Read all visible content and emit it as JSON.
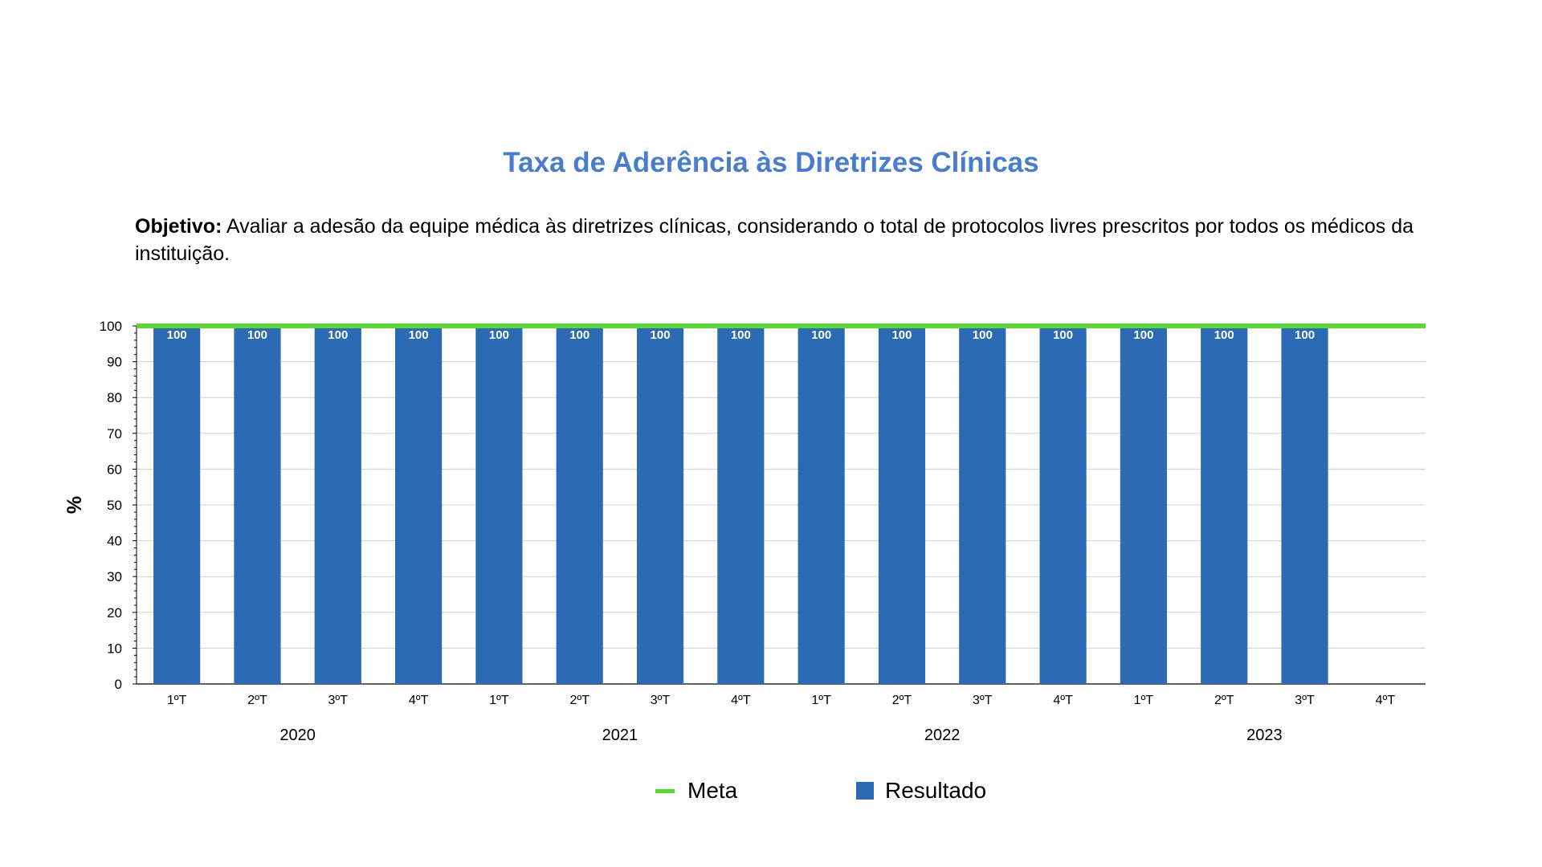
{
  "title": "Taxa de Aderência às Diretrizes Clínicas",
  "objective": {
    "label": "Objetivo:",
    "text": " Avaliar a adesão da equipe médica às diretrizes clínicas, considerando o total de protocolos livres prescritos por todos os médicos da instituição."
  },
  "colors": {
    "title": "#4a7ccc",
    "bar": "#2c6bb3",
    "meta": "#5ed63a",
    "grid": "#d0d0d0",
    "axis": "#000000"
  },
  "legend": {
    "meta_label": "Meta",
    "result_label": "Resultado"
  },
  "chart_data": {
    "type": "bar",
    "title": "Taxa de Aderência às Diretrizes Clínicas",
    "ylabel": "%",
    "xlabel": "",
    "ylim": [
      0,
      100
    ],
    "yticks": [
      0,
      10,
      20,
      30,
      40,
      50,
      60,
      70,
      80,
      90,
      100
    ],
    "grid": true,
    "categories": [
      "1ºT",
      "2ºT",
      "3ºT",
      "4ºT",
      "1ºT",
      "2ºT",
      "3ºT",
      "4ºT",
      "1ºT",
      "2ºT",
      "3ºT",
      "4ºT",
      "1ºT",
      "2ºT",
      "3ºT",
      "4ºT"
    ],
    "groups": [
      {
        "label": "2020",
        "quarters": 4
      },
      {
        "label": "2021",
        "quarters": 4
      },
      {
        "label": "2022",
        "quarters": 4
      },
      {
        "label": "2023",
        "quarters": 4
      }
    ],
    "series": [
      {
        "name": "Resultado",
        "type": "bar",
        "values": [
          100,
          100,
          100,
          100,
          100,
          100,
          100,
          100,
          100,
          100,
          100,
          100,
          100,
          100,
          100,
          null
        ],
        "data_labels": [
          "100",
          "100",
          "100",
          "100",
          "100",
          "100",
          "100",
          "100",
          "100",
          "100",
          "100",
          "100",
          "100",
          "100",
          "100",
          ""
        ]
      },
      {
        "name": "Meta",
        "type": "line",
        "values": [
          100,
          100,
          100,
          100,
          100,
          100,
          100,
          100,
          100,
          100,
          100,
          100,
          100,
          100,
          100,
          100
        ]
      }
    ],
    "legend_position": "bottom-center"
  }
}
